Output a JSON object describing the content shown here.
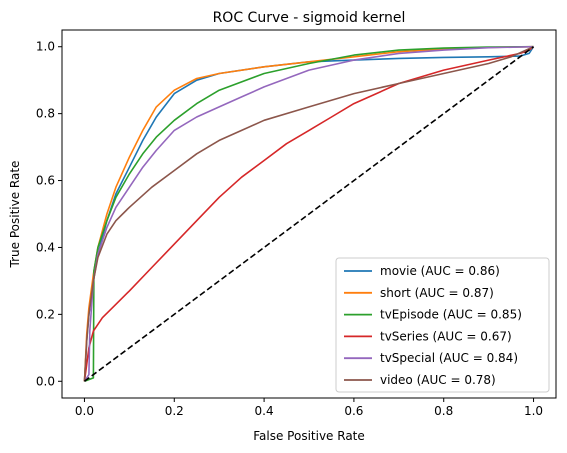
{
  "chart_data": {
    "type": "line",
    "title": "ROC Curve - sigmoid kernel",
    "xlabel": "False Positive Rate",
    "ylabel": "True Positive Rate",
    "xlim": [
      -0.05,
      1.05
    ],
    "ylim": [
      -0.05,
      1.05
    ],
    "xticks": [
      0.0,
      0.2,
      0.4,
      0.6,
      0.8,
      1.0
    ],
    "yticks": [
      0.0,
      0.2,
      0.4,
      0.6,
      0.8,
      1.0
    ],
    "xtick_labels": [
      "0.0",
      "0.2",
      "0.4",
      "0.6",
      "0.8",
      "1.0"
    ],
    "ytick_labels": [
      "0.0",
      "0.2",
      "0.4",
      "0.6",
      "0.8",
      "1.0"
    ],
    "grid": false,
    "legend_position": "lower-right",
    "diagonal": {
      "x": [
        0,
        1
      ],
      "y": [
        0,
        1
      ],
      "color": "#000000",
      "style": "dashed"
    },
    "series": [
      {
        "name": "movie (AUC = 0.86)",
        "color": "#1f77b4",
        "x": [
          0,
          0.005,
          0.01,
          0.02,
          0.03,
          0.05,
          0.07,
          0.1,
          0.13,
          0.16,
          0.2,
          0.25,
          0.3,
          0.4,
          0.5,
          0.6,
          0.7,
          0.8,
          0.9,
          0.97,
          0.99,
          1.0
        ],
        "y": [
          0,
          0.12,
          0.2,
          0.3,
          0.38,
          0.48,
          0.56,
          0.64,
          0.72,
          0.79,
          0.86,
          0.9,
          0.92,
          0.94,
          0.955,
          0.96,
          0.965,
          0.968,
          0.97,
          0.972,
          0.98,
          1.0
        ]
      },
      {
        "name": "short (AUC = 0.87)",
        "color": "#ff7f0e",
        "x": [
          0,
          0.005,
          0.01,
          0.02,
          0.03,
          0.05,
          0.07,
          0.1,
          0.13,
          0.16,
          0.2,
          0.25,
          0.3,
          0.4,
          0.5,
          0.6,
          0.7,
          0.8,
          0.9,
          1.0
        ],
        "y": [
          0,
          0.14,
          0.22,
          0.32,
          0.4,
          0.5,
          0.58,
          0.67,
          0.75,
          0.82,
          0.87,
          0.905,
          0.92,
          0.94,
          0.955,
          0.97,
          0.985,
          0.993,
          0.998,
          1.0
        ]
      },
      {
        "name": "tvEpisode (AUC = 0.85)",
        "color": "#2ca02c",
        "x": [
          0,
          0.02,
          0.021,
          0.03,
          0.05,
          0.07,
          0.1,
          0.13,
          0.16,
          0.2,
          0.25,
          0.3,
          0.4,
          0.5,
          0.6,
          0.7,
          0.8,
          0.9,
          1.0
        ],
        "y": [
          0,
          0.01,
          0.33,
          0.4,
          0.48,
          0.55,
          0.62,
          0.68,
          0.73,
          0.78,
          0.83,
          0.87,
          0.92,
          0.95,
          0.975,
          0.99,
          0.996,
          0.999,
          1.0
        ]
      },
      {
        "name": "tvSeries (AUC = 0.67)",
        "color": "#d62728",
        "x": [
          0,
          0.005,
          0.01,
          0.02,
          0.04,
          0.07,
          0.1,
          0.15,
          0.2,
          0.25,
          0.3,
          0.35,
          0.4,
          0.45,
          0.5,
          0.55,
          0.6,
          0.65,
          0.7,
          0.8,
          0.9,
          0.97,
          0.99,
          1.0
        ],
        "y": [
          0,
          0.05,
          0.1,
          0.15,
          0.19,
          0.23,
          0.27,
          0.34,
          0.41,
          0.48,
          0.55,
          0.61,
          0.66,
          0.71,
          0.75,
          0.79,
          0.83,
          0.86,
          0.89,
          0.93,
          0.96,
          0.98,
          0.99,
          1.0
        ]
      },
      {
        "name": "tvSpecial (AUC = 0.84)",
        "color": "#9467bd",
        "x": [
          0,
          0.01,
          0.012,
          0.02,
          0.03,
          0.05,
          0.07,
          0.1,
          0.13,
          0.16,
          0.2,
          0.25,
          0.3,
          0.35,
          0.4,
          0.5,
          0.6,
          0.7,
          0.8,
          0.9,
          1.0
        ],
        "y": [
          0,
          0.02,
          0.15,
          0.3,
          0.38,
          0.46,
          0.52,
          0.58,
          0.64,
          0.69,
          0.75,
          0.79,
          0.82,
          0.85,
          0.88,
          0.93,
          0.96,
          0.98,
          0.99,
          0.997,
          1.0
        ]
      },
      {
        "name": "video (AUC = 0.78)",
        "color": "#8c564b",
        "x": [
          0,
          0.005,
          0.01,
          0.02,
          0.03,
          0.05,
          0.07,
          0.1,
          0.15,
          0.2,
          0.25,
          0.3,
          0.35,
          0.4,
          0.5,
          0.6,
          0.7,
          0.8,
          0.9,
          0.95,
          1.0
        ],
        "y": [
          0,
          0.12,
          0.2,
          0.3,
          0.37,
          0.44,
          0.48,
          0.52,
          0.58,
          0.63,
          0.68,
          0.72,
          0.75,
          0.78,
          0.82,
          0.86,
          0.89,
          0.92,
          0.95,
          0.97,
          1.0
        ]
      }
    ]
  }
}
